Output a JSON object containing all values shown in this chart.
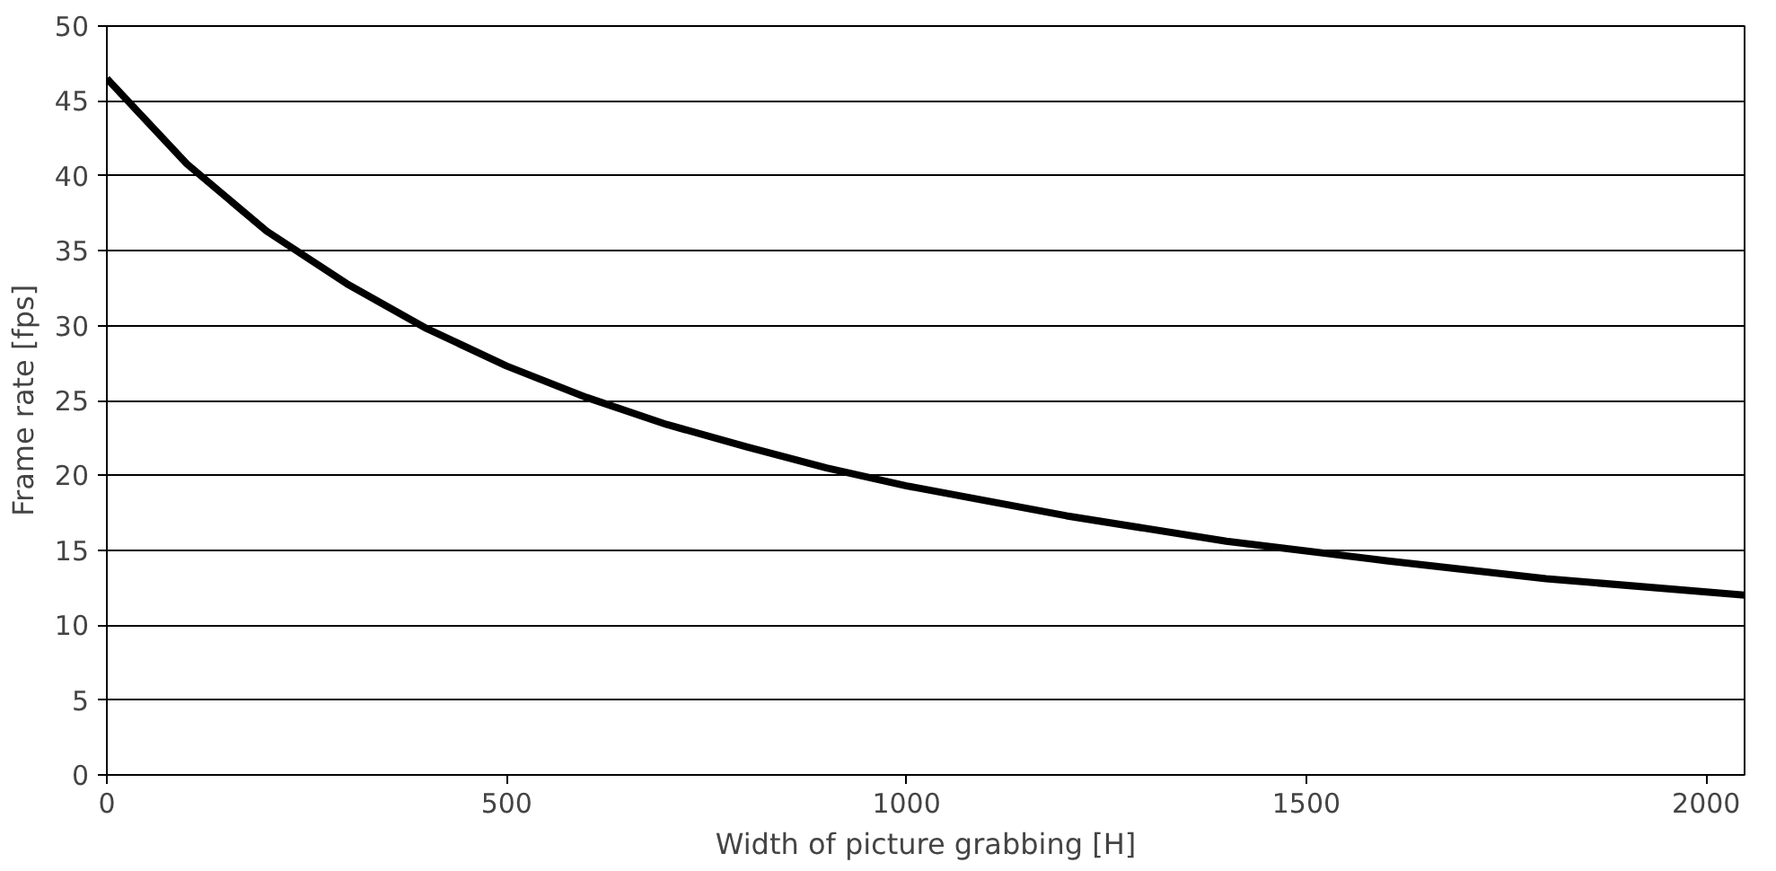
{
  "chart_data": {
    "type": "line",
    "xlabel": "Width of picture grabbing [H]",
    "ylabel": "Frame rate [fps]",
    "x": [
      0,
      100,
      200,
      300,
      400,
      500,
      600,
      700,
      800,
      900,
      1000,
      1200,
      1400,
      1600,
      1800,
      2048
    ],
    "series": [
      {
        "color": "#000000",
        "values": [
          46.5,
          40.8,
          36.3,
          32.8,
          29.8,
          27.3,
          25.2,
          23.4,
          21.9,
          20.5,
          19.3,
          17.3,
          15.6,
          14.3,
          13.1,
          12.0
        ]
      }
    ],
    "xlim": [
      0,
      2048
    ],
    "ylim": [
      0,
      50
    ],
    "xticks": [
      0,
      500,
      1000,
      1500,
      2000
    ],
    "yticks": [
      0,
      5,
      10,
      15,
      20,
      25,
      30,
      35,
      40,
      45,
      50
    ],
    "grid": "y",
    "marker": "none",
    "line_style": "solid"
  }
}
